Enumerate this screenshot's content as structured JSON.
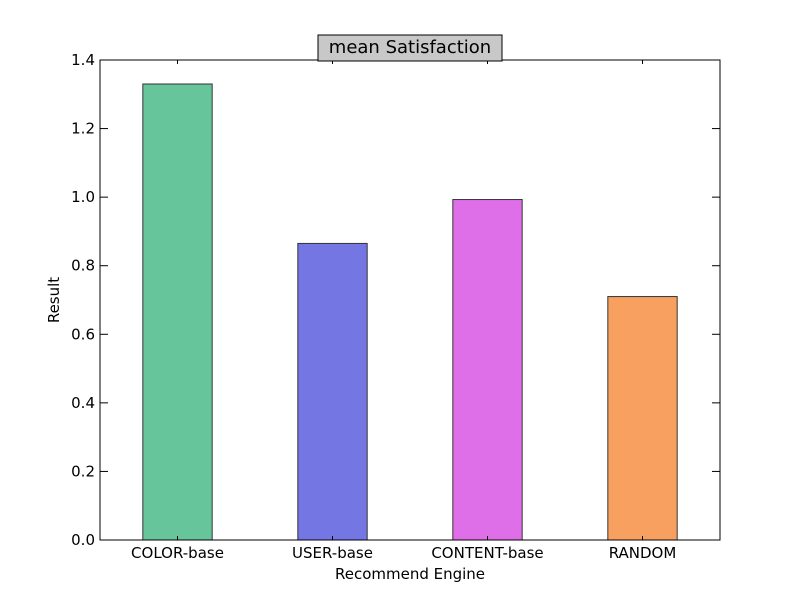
{
  "chart_data": {
    "type": "bar",
    "title": "mean Satisfaction",
    "xlabel": "Recommend Engine",
    "ylabel": "Result",
    "categories": [
      "COLOR-base",
      "USER-base",
      "CONTENT-base",
      "RANDOM"
    ],
    "values": [
      1.33,
      0.865,
      0.993,
      0.71
    ],
    "colors": [
      "#66c59b",
      "#7476e3",
      "#df6ee9",
      "#f8a05f"
    ],
    "ylim": [
      0,
      1.4
    ],
    "yticks": [
      0.0,
      0.2,
      0.4,
      0.6,
      0.8,
      1.0,
      1.2,
      1.4
    ],
    "ytick_labels": [
      "0.0",
      "0.2",
      "0.4",
      "0.6",
      "0.8",
      "1.0",
      "1.2",
      "1.4"
    ],
    "grid": false,
    "legend": "none"
  }
}
